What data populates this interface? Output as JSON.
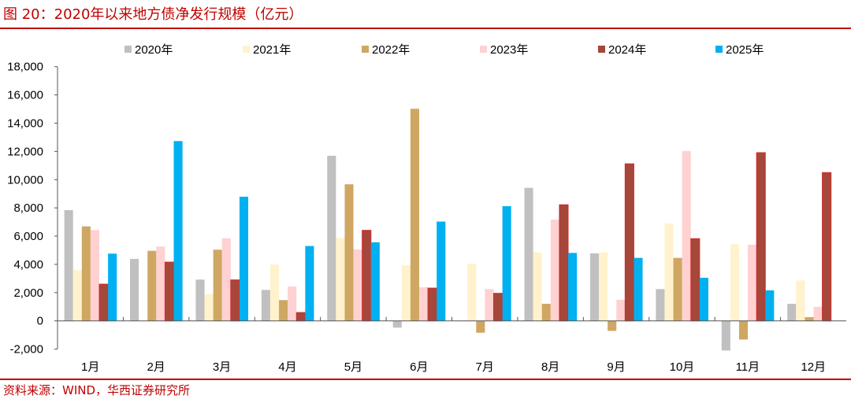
{
  "header": {
    "title": "图 20：2020年以来地方债净发行规模（亿元）"
  },
  "footer": {
    "source": "资料来源：WIND，华西证券研究所"
  },
  "chart_data": {
    "type": "bar",
    "title": "",
    "xlabel": "",
    "ylabel": "",
    "ylim": [
      -2000,
      18000
    ],
    "yticks": [
      -2000,
      0,
      2000,
      4000,
      6000,
      8000,
      10000,
      12000,
      14000,
      16000,
      18000
    ],
    "ytick_labels": [
      "-2,000",
      "0",
      "2,000",
      "4,000",
      "6,000",
      "8,000",
      "10,000",
      "12,000",
      "14,000",
      "16,000",
      "18,000"
    ],
    "grid": false,
    "legend": "top",
    "categories": [
      "1月",
      "2月",
      "3月",
      "4月",
      "5月",
      "6月",
      "7月",
      "8月",
      "9月",
      "10月",
      "11月",
      "12月"
    ],
    "series": [
      {
        "name": "2020年",
        "color": "#c0c0c0",
        "values": [
          7840,
          4390,
          2920,
          2190,
          11690,
          -480,
          0,
          9420,
          4780,
          2250,
          -2100,
          1210
        ]
      },
      {
        "name": "2021年",
        "color": "#fff2cc",
        "values": [
          3600,
          0,
          1900,
          3980,
          5870,
          3940,
          4050,
          4850,
          4850,
          6900,
          5430,
          2860
        ]
      },
      {
        "name": "2022年",
        "color": "#cfa763",
        "values": [
          6690,
          4960,
          5040,
          1470,
          9670,
          15020,
          -840,
          1210,
          -710,
          4460,
          -1320,
          260
        ]
      },
      {
        "name": "2023年",
        "color": "#ffd1d1",
        "values": [
          6430,
          5260,
          5850,
          2430,
          5060,
          2380,
          2250,
          7170,
          1490,
          12030,
          5390,
          990
        ]
      },
      {
        "name": "2024年",
        "color": "#a5473a",
        "values": [
          2600,
          4160,
          2900,
          590,
          6410,
          2320,
          1950,
          8220,
          11120,
          5820,
          11910,
          10500
        ]
      },
      {
        "name": "2025年",
        "color": "#00b0f0",
        "values": [
          4760,
          12730,
          8790,
          5300,
          5560,
          7030,
          8120,
          4810,
          4460,
          3050,
          2160,
          null
        ]
      }
    ]
  }
}
